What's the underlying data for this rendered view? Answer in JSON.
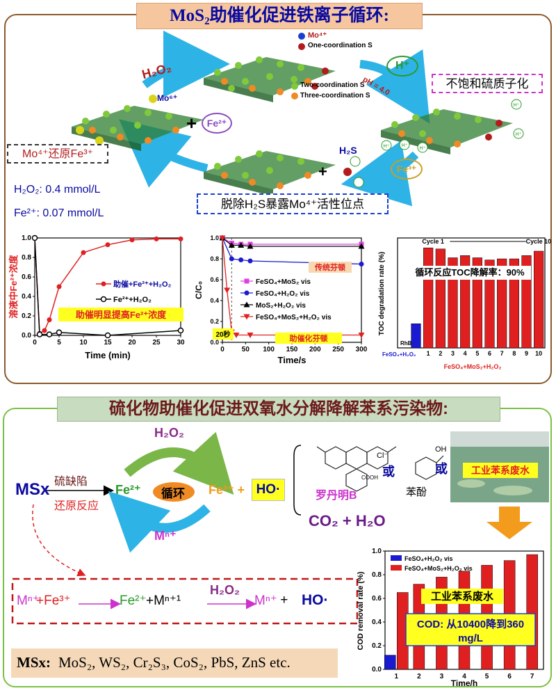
{
  "colors": {
    "panel1_border": "#8a5a2b",
    "panel2_border": "#7bc043",
    "title_bg": "#f6c79f",
    "title2_bg": "#c8dcc0",
    "dark_blue": "#0a0aa0",
    "red": "#e02020",
    "cyan_arrow": "#2eb3e6",
    "green_arrow": "#7ab648",
    "magenta": "#cc33cc",
    "orange": "#f29b1d"
  },
  "panel1": {
    "title": "MoS₂助催化促进铁离子循环:",
    "legend": [
      "Mo⁴⁺",
      "One-coordination S",
      "Two-coordination S",
      "Three-coordination S"
    ],
    "labels": {
      "h2o2": "H₂O₂",
      "mo6": "Mo⁶⁺",
      "plus": "+",
      "fe2": "Fe²⁺",
      "hplus": "H⁺",
      "ph": "pH = 4.0",
      "unsat": "不饱和硫质子化",
      "mo4_reduce": "Mo⁴⁺还原Fe³⁺",
      "h2s": "H₂S",
      "fe3": "Fe³⁺",
      "remove_h2s": "脱除H₂S暴露Mo⁴⁺活性位点",
      "h_small": "H⁺"
    },
    "conditions": [
      "H₂O₂: 0.4 mmol/L",
      "Fe²⁺: 0.07 mmol/L"
    ]
  },
  "chart_data": [
    {
      "type": "line",
      "ylabel": "溶液中Fe²⁺浓度",
      "xlabel": "Time (min)",
      "xlim": [
        0,
        30
      ],
      "ylim": [
        0,
        1.0
      ],
      "xticks": [
        "0",
        "5",
        "10",
        "15",
        "20",
        "25",
        "30"
      ],
      "yticks": [
        "0.0",
        "0.2",
        "0.4",
        "0.6",
        "0.8",
        "1.0"
      ],
      "series": [
        {
          "name": "助催+Fe²⁺+H₂O₂",
          "color": "#e02020",
          "marker": "circle-filled",
          "points": [
            [
              0,
              1.0
            ],
            [
              1,
              0.02
            ],
            [
              2,
              0.05
            ],
            [
              3,
              0.16
            ],
            [
              5,
              0.5
            ],
            [
              10,
              0.85
            ],
            [
              15,
              0.93
            ],
            [
              20,
              0.98
            ],
            [
              25,
              0.99
            ],
            [
              30,
              0.99
            ]
          ]
        },
        {
          "name": "Fe²⁺+H₂O₂",
          "color": "#000000",
          "marker": "circle-open",
          "points": [
            [
              0,
              1.0
            ],
            [
              1,
              0.01
            ],
            [
              3,
              0.01
            ],
            [
              5,
              0.03
            ],
            [
              15,
              0.0
            ],
            [
              30,
              0.05
            ]
          ]
        }
      ],
      "annotation": "助催明显提高Fe²⁺浓度"
    },
    {
      "type": "line",
      "ylabel": "C/C₀",
      "xlabel": "Time/s",
      "xlim": [
        0,
        300
      ],
      "ylim": [
        0,
        1.0
      ],
      "xticks": [
        "0",
        "50",
        "100",
        "150",
        "200",
        "250",
        "300"
      ],
      "yticks": [
        "0.0",
        "0.2",
        "0.4",
        "0.6",
        "0.8",
        "1.0"
      ],
      "series": [
        {
          "name": "FeSO₄+MoS₂ vis",
          "color": "#e040e0",
          "marker": "square",
          "points": [
            [
              0,
              1.0
            ],
            [
              20,
              0.95
            ],
            [
              40,
              0.94
            ],
            [
              60,
              0.94
            ],
            [
              300,
              0.94
            ]
          ]
        },
        {
          "name": "FeSO₄+H₂O₂ vis",
          "color": "#1a1ad0",
          "marker": "circle",
          "points": [
            [
              0,
              1.0
            ],
            [
              20,
              0.8
            ],
            [
              40,
              0.79
            ],
            [
              60,
              0.78
            ],
            [
              300,
              0.75
            ]
          ]
        },
        {
          "name": "MoS₂+H₂O₂ vis",
          "color": "#000000",
          "marker": "triangle-up",
          "points": [
            [
              0,
              1.0
            ],
            [
              20,
              0.93
            ],
            [
              40,
              0.93
            ],
            [
              60,
              0.92
            ],
            [
              300,
              0.92
            ]
          ]
        },
        {
          "name": "FeSO₄+MoS₂+H₂O₂ vis",
          "color": "#e02020",
          "marker": "triangle-down",
          "points": [
            [
              0,
              1.0
            ],
            [
              10,
              0.5
            ],
            [
              20,
              0.1
            ],
            [
              30,
              0.07
            ],
            [
              60,
              0.07
            ],
            [
              300,
              0.07
            ]
          ]
        }
      ],
      "annotations": [
        "传统芬顿",
        "助催化芬顿",
        "20秒"
      ]
    },
    {
      "type": "bar",
      "ylabel": "TOC degradation rate (%)",
      "categories": [
        "RhB",
        "FeSO₄+H₂O₂",
        "1",
        "2",
        "3",
        "4",
        "5",
        "6",
        "7",
        "8",
        "9",
        "10"
      ],
      "values": [
        0.0,
        0.22,
        0.91,
        0.9,
        0.82,
        0.84,
        0.82,
        0.8,
        0.81,
        0.81,
        0.84,
        0.88
      ],
      "bar_colors": [
        "#ffffff",
        "#1a1ad0",
        "#e02020",
        "#e02020",
        "#e02020",
        "#e02020",
        "#e02020",
        "#e02020",
        "#e02020",
        "#e02020",
        "#e02020",
        "#e02020"
      ],
      "ylim": [
        0,
        1.0
      ],
      "cycle_labels": [
        "Cycle 1",
        "Cycle 10"
      ],
      "group_label": "FeSO₄+MoS₂+H₂O₂",
      "annotation": "循环反应TOC降解率：90%"
    },
    {
      "type": "bar",
      "ylabel": "COD removal rate (%)",
      "xlabel": "Time/h",
      "categories": [
        "1",
        "2",
        "3",
        "4",
        "5",
        "6",
        "7"
      ],
      "ylim": [
        0,
        1.0
      ],
      "yticks": [
        "0.0",
        "0.2",
        "0.4",
        "0.6",
        "0.8",
        "1.0"
      ],
      "series": [
        {
          "name": "FeSO₄+H₂O₂ vis",
          "color": "#1a1ad0",
          "values": [
            0.12,
            null,
            null,
            null,
            null,
            null,
            null
          ]
        },
        {
          "name": "FeSO₄+MoS₂+H₂O₂ vis",
          "color": "#e02020",
          "values": [
            0.65,
            0.72,
            0.78,
            0.83,
            0.88,
            0.92,
            0.97
          ]
        }
      ],
      "annotations": [
        "工业苯系废水",
        "COD: 从10400降到360 mg/L"
      ]
    }
  ],
  "panel2": {
    "title": "硫化物助催化促进双氧水分解降解苯系污染物:",
    "msx": "MSx",
    "defect": "硫缺陷",
    "reduction": "还原反应",
    "fe2": "Fe²⁺",
    "cycle": "循环",
    "fe3plus": "Fe³⁺ +",
    "h2o2": "H₂O₂",
    "mn": "Mⁿ⁺",
    "ho": "HO·",
    "rhodamine": "罗丹明B",
    "or1": "或",
    "phenol": "苯酚",
    "or2": "或",
    "wastewater": "工业苯系废水",
    "co2": "CO₂ + H₂O",
    "cl": "Cl⁻",
    "cooh": "COOH",
    "oh": "OH",
    "eq_parts": [
      "Mⁿ⁺",
      "+Fe³⁺",
      "Fe²⁺",
      "+Mⁿ⁺¹",
      "H₂O₂",
      "Mⁿ⁺",
      " + ",
      "HO·"
    ],
    "msx_list_label": "MSx:",
    "msx_list": "MoS₂, WS₂, Cr₂S₃, CoS₂, PbS, ZnS etc."
  }
}
